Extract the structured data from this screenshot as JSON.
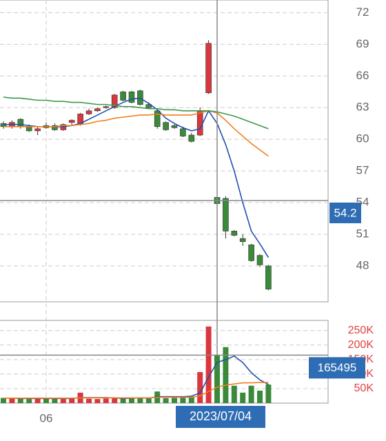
{
  "chart_data": [
    {
      "type": "candlestick",
      "categories": [
        null,
        null,
        null,
        null,
        null,
        "06",
        null,
        null,
        null,
        null,
        null,
        null,
        null,
        null,
        null,
        null,
        null,
        null,
        null,
        null,
        null,
        null,
        null,
        null,
        null,
        null,
        null,
        null,
        null,
        null,
        null,
        null
      ],
      "open": [
        61.5,
        61.2,
        61.9,
        61.2,
        60.8,
        61.3,
        61.3,
        60.9,
        61.6,
        61.4,
        62.4,
        62.7,
        63.0,
        63.0,
        64.5,
        64.5,
        64.6,
        63.3,
        62.7,
        61.6,
        61.3,
        61.0,
        60.4,
        60.4,
        64.4,
        54.5,
        54.4,
        51.3,
        50.6,
        50.0,
        49.0,
        48.0
      ],
      "high": [
        61.7,
        61.8,
        62.0,
        61.4,
        61.2,
        61.6,
        61.5,
        61.5,
        61.9,
        62.5,
        62.9,
        63.0,
        63.2,
        64.3,
        64.6,
        64.6,
        64.7,
        63.5,
        62.9,
        61.7,
        61.5,
        61.2,
        60.6,
        63.0,
        69.4,
        54.9,
        54.6,
        51.4,
        51.0,
        50.1,
        49.1,
        48.1
      ],
      "low": [
        61.0,
        61.0,
        61.0,
        60.7,
        60.4,
        61.0,
        60.8,
        60.8,
        61.3,
        61.3,
        62.3,
        62.6,
        62.9,
        62.9,
        63.6,
        63.4,
        63.2,
        62.9,
        61.0,
        60.8,
        61.0,
        60.2,
        59.7,
        60.3,
        64.3,
        53.6,
        50.6,
        50.8,
        49.9,
        48.4,
        47.9,
        45.7
      ],
      "close": [
        61.2,
        61.6,
        61.2,
        60.8,
        61.0,
        61.1,
        60.9,
        61.4,
        61.8,
        62.4,
        62.7,
        62.9,
        63.1,
        64.2,
        63.7,
        63.5,
        63.3,
        63.0,
        61.2,
        60.9,
        61.1,
        60.3,
        59.8,
        62.7,
        69.1,
        53.9,
        51.3,
        50.9,
        50.3,
        48.5,
        48.1,
        45.8
      ],
      "up_color": "#d9363e",
      "down_color": "#3a8a3a",
      "series": [
        {
          "color": "#1f4fb0",
          "values": [
            61.4,
            61.4,
            61.4,
            61.3,
            61.2,
            61.2,
            61.2,
            61.2,
            61.3,
            61.5,
            61.9,
            62.3,
            62.7,
            63.1,
            63.5,
            63.8,
            63.9,
            63.4,
            62.8,
            62.0,
            61.5,
            61.1,
            60.8,
            61.0,
            62.7,
            61.5,
            59.5,
            57.0,
            54.0,
            51.3,
            50.1,
            48.8
          ]
        },
        {
          "color": "#f07f1f",
          "values": [
            61.2,
            61.2,
            61.2,
            61.2,
            61.2,
            61.2,
            61.2,
            61.3,
            61.3,
            61.4,
            61.5,
            61.7,
            61.8,
            62.0,
            62.1,
            62.2,
            62.3,
            62.3,
            62.4,
            62.3,
            62.3,
            62.3,
            62.3,
            62.5,
            62.7,
            62.5,
            61.8,
            61.0,
            60.3,
            59.6,
            59.0,
            58.4
          ]
        },
        {
          "color": "#3a9a4a",
          "values": [
            64.0,
            63.9,
            63.9,
            63.8,
            63.7,
            63.7,
            63.6,
            63.6,
            63.5,
            63.5,
            63.4,
            63.3,
            63.3,
            63.2,
            63.1,
            63.1,
            63.0,
            62.9,
            62.9,
            62.8,
            62.8,
            62.7,
            62.7,
            62.7,
            62.7,
            62.6,
            62.4,
            62.2,
            61.9,
            61.6,
            61.3,
            61.0
          ]
        }
      ],
      "ylim": [
        44.6,
        73.2
      ],
      "yticks": [
        48,
        51,
        54,
        57,
        60,
        63,
        66,
        69,
        72
      ],
      "grid": true,
      "crosshair": {
        "x_label": "2023/07/04",
        "y_value": 54.2
      }
    },
    {
      "type": "bar",
      "values": [
        18000,
        16000,
        17000,
        14000,
        15000,
        16000,
        17000,
        14000,
        16000,
        36000,
        15000,
        14000,
        16000,
        17000,
        18000,
        17000,
        19000,
        16000,
        40000,
        17000,
        18000,
        19000,
        22000,
        107000,
        264000,
        165495,
        193000,
        60000,
        36000,
        60000,
        43000,
        64000
      ],
      "series": [
        {
          "color": "#1f4fb0",
          "values": [
            17000,
            17000,
            16000,
            16000,
            16000,
            16000,
            16000,
            16000,
            16000,
            19000,
            19000,
            19000,
            19000,
            18000,
            16000,
            17000,
            18000,
            17000,
            22000,
            22000,
            22000,
            22000,
            24000,
            35000,
            90000,
            140000,
            150000,
            162000,
            140000,
            105000,
            80000,
            64000
          ]
        },
        {
          "color": "#f07f1f",
          "values": [
            17000,
            17000,
            17000,
            17000,
            17000,
            17000,
            17000,
            17000,
            17000,
            18000,
            18000,
            18000,
            18000,
            18000,
            18000,
            18000,
            18000,
            18000,
            20000,
            20000,
            20000,
            20000,
            20000,
            25000,
            40000,
            55000,
            62000,
            66000,
            70000,
            70000,
            71000,
            71000
          ]
        }
      ],
      "ylim": [
        0,
        285000
      ],
      "yticks": [
        {
          "value": 50000,
          "label": "50K"
        },
        {
          "value": 100000,
          "label": "100K"
        },
        {
          "value": 150000,
          "label": "150K"
        },
        {
          "value": 200000,
          "label": "200K"
        },
        {
          "value": 250000,
          "label": "250K"
        }
      ],
      "grid": true,
      "crosshair": {
        "y_value": 165495
      }
    }
  ]
}
